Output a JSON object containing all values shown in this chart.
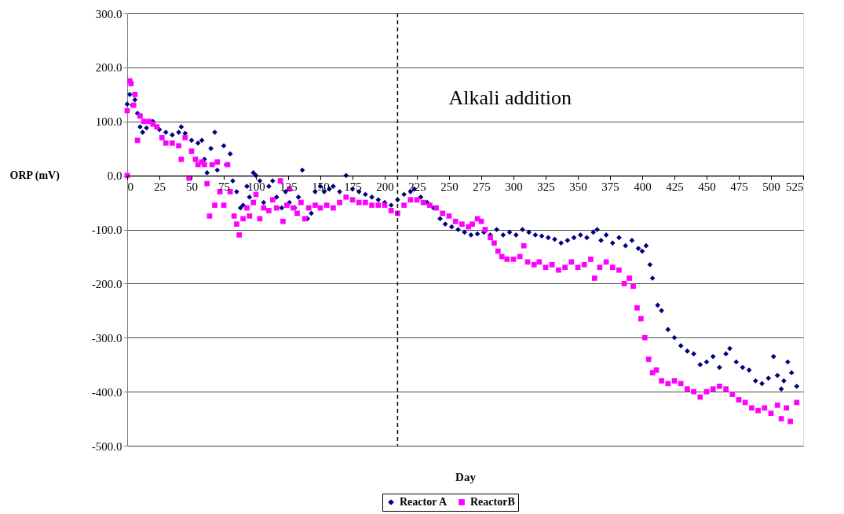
{
  "chart_data": {
    "type": "scatter",
    "xlabel": "Day",
    "ylabel": "ORP (mV)",
    "xlim": [
      0,
      525
    ],
    "ylim": [
      -500,
      300
    ],
    "xticks": [
      0,
      25,
      50,
      75,
      100,
      125,
      150,
      175,
      200,
      225,
      250,
      275,
      300,
      325,
      350,
      375,
      400,
      425,
      450,
      475,
      500,
      525
    ],
    "yticks": [
      {
        "value": -500,
        "label": "-500.0"
      },
      {
        "value": -400,
        "label": "-400.0"
      },
      {
        "value": -300,
        "label": "-300.0"
      },
      {
        "value": -200,
        "label": "-200.0"
      },
      {
        "value": -100,
        "label": "-100.0"
      },
      {
        "value": 0,
        "label": "0.0"
      },
      {
        "value": 100,
        "label": "100.0"
      },
      {
        "value": 200,
        "label": "200.0"
      },
      {
        "value": 300,
        "label": "300.0"
      }
    ],
    "grid": "y",
    "legend": "bottom",
    "ref_lines": [
      {
        "axis": "x",
        "value": 210,
        "label": "Alkali addition",
        "line_style": "dashed",
        "color": "#000000"
      }
    ],
    "series": [
      {
        "name": "Reactor A",
        "color": "#000080",
        "marker": "diamond",
        "x": [
          0,
          2,
          4,
          6,
          8,
          10,
          12,
          15,
          20,
          25,
          30,
          35,
          40,
          42,
          45,
          50,
          55,
          58,
          60,
          62,
          65,
          68,
          70,
          75,
          77,
          80,
          82,
          85,
          88,
          90,
          93,
          95,
          98,
          100,
          103,
          106,
          110,
          113,
          116,
          120,
          123,
          126,
          130,
          133,
          136,
          140,
          143,
          146,
          150,
          153,
          157,
          160,
          165,
          170,
          175,
          180,
          185,
          190,
          195,
          200,
          205,
          210,
          215,
          220,
          223,
          228,
          233,
          238,
          243,
          247,
          252,
          257,
          262,
          267,
          272,
          277,
          282,
          287,
          292,
          297,
          302,
          307,
          312,
          317,
          322,
          327,
          332,
          337,
          342,
          347,
          352,
          357,
          362,
          365,
          368,
          372,
          377,
          382,
          387,
          392,
          397,
          400,
          403,
          406,
          408,
          412,
          415,
          420,
          425,
          430,
          435,
          440,
          445,
          450,
          455,
          460,
          465,
          468,
          473,
          478,
          483,
          488,
          493,
          498,
          502,
          505,
          508,
          510,
          513,
          516,
          520
        ],
        "values": [
          132,
          150,
          130,
          140,
          115,
          90,
          80,
          88,
          100,
          85,
          80,
          75,
          80,
          90,
          78,
          65,
          60,
          65,
          30,
          5,
          50,
          80,
          10,
          55,
          20,
          40,
          -10,
          -30,
          -60,
          -55,
          -20,
          -40,
          5,
          0,
          -10,
          -50,
          -20,
          -10,
          -40,
          -60,
          -30,
          -50,
          -60,
          -40,
          10,
          -80,
          -70,
          -30,
          -20,
          -30,
          -25,
          -20,
          -30,
          0,
          -25,
          -30,
          -35,
          -40,
          -45,
          -50,
          -55,
          -45,
          -35,
          -30,
          -25,
          -40,
          -50,
          -60,
          -80,
          -90,
          -95,
          -100,
          -105,
          -110,
          -108,
          -105,
          -110,
          -100,
          -110,
          -105,
          -110,
          -100,
          -105,
          -110,
          -112,
          -115,
          -118,
          -125,
          -120,
          -115,
          -110,
          -115,
          -105,
          -100,
          -120,
          -110,
          -125,
          -115,
          -130,
          -120,
          -135,
          -140,
          -130,
          -165,
          -190,
          -240,
          -250,
          -285,
          -300,
          -315,
          -325,
          -330,
          -350,
          -345,
          -335,
          -355,
          -330,
          -320,
          -345,
          -355,
          -360,
          -380,
          -385,
          -375,
          -335,
          -370,
          -395,
          -380,
          -345,
          -365,
          -390
        ]
      },
      {
        "name": "ReactorB",
        "color": "#ff00ff",
        "marker": "square",
        "x": [
          0,
          0,
          2,
          3,
          5,
          6,
          8,
          10,
          13,
          17,
          20,
          23,
          27,
          30,
          35,
          40,
          42,
          45,
          48,
          50,
          53,
          55,
          58,
          60,
          62,
          64,
          66,
          68,
          70,
          72,
          75,
          78,
          80,
          83,
          85,
          87,
          90,
          93,
          95,
          98,
          100,
          103,
          106,
          110,
          113,
          116,
          119,
          121,
          124,
          126,
          129,
          132,
          135,
          138,
          141,
          146,
          150,
          155,
          160,
          165,
          170,
          175,
          180,
          185,
          190,
          195,
          200,
          205,
          210,
          215,
          220,
          225,
          230,
          235,
          240,
          245,
          250,
          255,
          260,
          265,
          268,
          272,
          275,
          278,
          282,
          285,
          288,
          291,
          295,
          300,
          305,
          308,
          311,
          316,
          320,
          325,
          330,
          335,
          340,
          345,
          350,
          355,
          360,
          363,
          367,
          372,
          377,
          382,
          386,
          390,
          393,
          396,
          399,
          402,
          405,
          408,
          411,
          415,
          420,
          425,
          430,
          435,
          440,
          445,
          450,
          455,
          460,
          465,
          470,
          475,
          480,
          485,
          490,
          495,
          500,
          505,
          508,
          512,
          515,
          520
        ],
        "values": [
          0,
          120,
          175,
          170,
          130,
          150,
          65,
          110,
          100,
          100,
          95,
          90,
          70,
          60,
          60,
          55,
          30,
          70,
          -5,
          45,
          30,
          20,
          25,
          20,
          -15,
          -75,
          20,
          -55,
          25,
          -30,
          -55,
          20,
          -30,
          -75,
          -90,
          -110,
          -80,
          -60,
          -75,
          -50,
          -35,
          -80,
          -60,
          -65,
          -45,
          -60,
          -10,
          -85,
          -55,
          -25,
          -60,
          -70,
          -50,
          -80,
          -60,
          -55,
          -60,
          -55,
          -60,
          -50,
          -40,
          -45,
          -50,
          -50,
          -55,
          -55,
          -55,
          -65,
          -70,
          -55,
          -45,
          -45,
          -50,
          -55,
          -60,
          -70,
          -75,
          -85,
          -90,
          -95,
          -90,
          -80,
          -85,
          -100,
          -115,
          -125,
          -140,
          -150,
          -155,
          -155,
          -150,
          -130,
          -160,
          -165,
          -160,
          -170,
          -165,
          -175,
          -170,
          -160,
          -170,
          -165,
          -155,
          -190,
          -170,
          -160,
          -170,
          -175,
          -200,
          -190,
          -205,
          -245,
          -265,
          -300,
          -340,
          -365,
          -360,
          -380,
          -385,
          -380,
          -385,
          -395,
          -400,
          -410,
          -400,
          -395,
          -390,
          -395,
          -405,
          -415,
          -420,
          -430,
          -435,
          -430,
          -440,
          -425,
          -450,
          -430,
          -455,
          -420
        ]
      }
    ]
  }
}
